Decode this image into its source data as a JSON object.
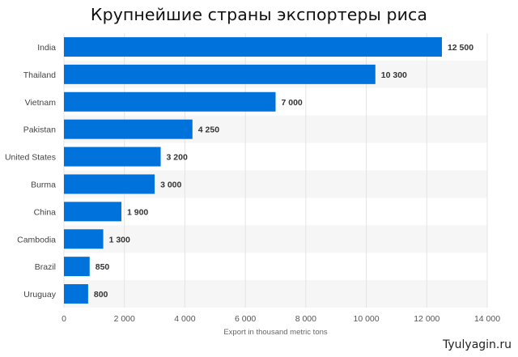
{
  "chart_data": {
    "type": "bar",
    "orientation": "horizontal",
    "title": "Крупнейшие страны экспортеры риса",
    "categories": [
      "India",
      "Thailand",
      "Vietnam",
      "Pakistan",
      "United States",
      "Burma",
      "China",
      "Cambodia",
      "Brazil",
      "Uruguay"
    ],
    "values": [
      12500,
      10300,
      7000,
      4250,
      3200,
      3000,
      1900,
      1300,
      850,
      800
    ],
    "data_labels": [
      "12 500",
      "10 300",
      "7 000",
      "4 250",
      "3 200",
      "3 000",
      "1 900",
      "1 300",
      "850",
      "800"
    ],
    "xlabel": "Export in thousand metric tons",
    "ylabel": "",
    "xlim": [
      0,
      14000
    ],
    "x_ticks": [
      0,
      2000,
      4000,
      6000,
      8000,
      10000,
      12000,
      14000
    ],
    "x_tick_labels": [
      "0",
      "2 000",
      "4 000",
      "6 000",
      "8 000",
      "10 000",
      "12 000",
      "14 000"
    ],
    "grid": "vertical",
    "bar_color": "#0072db",
    "stripe_color": "#f6f6f6",
    "grid_color": "#e4e4e4"
  },
  "watermark": "Tyulyagin.ru"
}
